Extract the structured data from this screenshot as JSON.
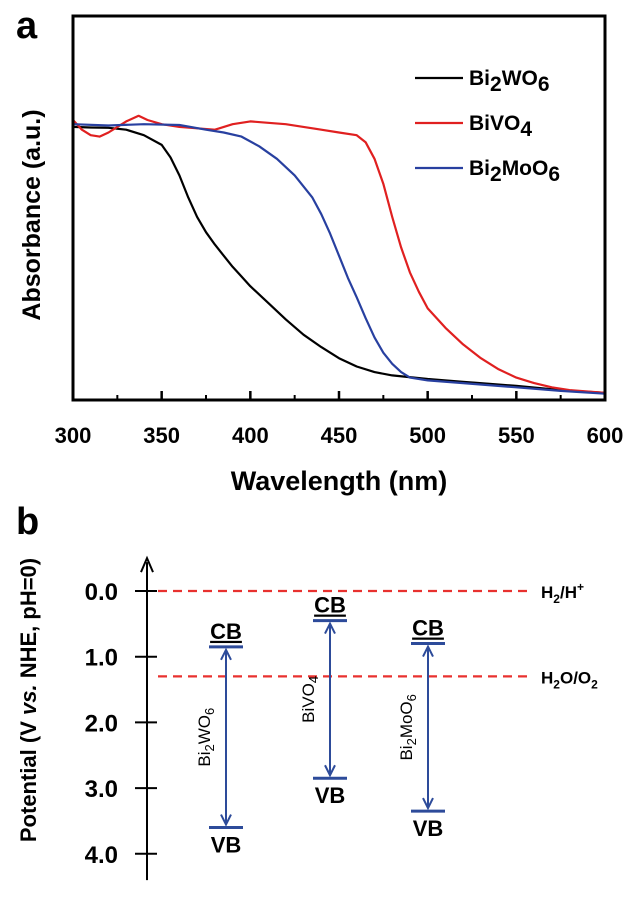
{
  "chart_data": [
    {
      "panel_label": "a",
      "type": "line",
      "xlabel": "Wavelength (nm)",
      "ylabel": "Absorbance (a.u.)",
      "xlim": [
        300,
        600
      ],
      "ylim": [
        0,
        1
      ],
      "x_ticks": [
        "300",
        "350",
        "400",
        "450",
        "500",
        "550",
        "600"
      ],
      "legend_position": "top-right",
      "series": [
        {
          "name": "Bi2WO6",
          "name_parts": {
            "base": "Bi",
            "sub1": "2",
            "mid": "WO",
            "sub2": "6"
          },
          "color": "#000000",
          "points": [
            [
              300,
              0.975
            ],
            [
              310,
              0.973
            ],
            [
              320,
              0.972
            ],
            [
              330,
              0.965
            ],
            [
              340,
              0.945
            ],
            [
              350,
              0.91
            ],
            [
              355,
              0.865
            ],
            [
              360,
              0.8
            ],
            [
              365,
              0.72
            ],
            [
              370,
              0.65
            ],
            [
              375,
              0.595
            ],
            [
              380,
              0.55
            ],
            [
              385,
              0.51
            ],
            [
              390,
              0.47
            ],
            [
              395,
              0.435
            ],
            [
              400,
              0.4
            ],
            [
              410,
              0.34
            ],
            [
              420,
              0.28
            ],
            [
              430,
              0.225
            ],
            [
              440,
              0.18
            ],
            [
              450,
              0.14
            ],
            [
              460,
              0.11
            ],
            [
              470,
              0.09
            ],
            [
              480,
              0.078
            ],
            [
              500,
              0.065
            ],
            [
              520,
              0.055
            ],
            [
              550,
              0.04
            ],
            [
              575,
              0.025
            ],
            [
              600,
              0.015
            ]
          ]
        },
        {
          "name": "BiVO4",
          "name_parts": {
            "base": "BiVO",
            "sub1": "4",
            "mid": "",
            "sub2": ""
          },
          "color": "#e02020",
          "points": [
            [
              300,
              1.0
            ],
            [
              305,
              0.965
            ],
            [
              310,
              0.945
            ],
            [
              315,
              0.94
            ],
            [
              320,
              0.955
            ],
            [
              330,
              0.995
            ],
            [
              337,
              1.015
            ],
            [
              342,
              1.0
            ],
            [
              350,
              0.985
            ],
            [
              360,
              0.975
            ],
            [
              370,
              0.97
            ],
            [
              380,
              0.965
            ],
            [
              390,
              0.985
            ],
            [
              400,
              0.995
            ],
            [
              410,
              0.99
            ],
            [
              420,
              0.985
            ],
            [
              430,
              0.975
            ],
            [
              440,
              0.965
            ],
            [
              450,
              0.955
            ],
            [
              460,
              0.945
            ],
            [
              465,
              0.92
            ],
            [
              470,
              0.86
            ],
            [
              475,
              0.77
            ],
            [
              480,
              0.65
            ],
            [
              485,
              0.54
            ],
            [
              490,
              0.45
            ],
            [
              495,
              0.38
            ],
            [
              500,
              0.32
            ],
            [
              510,
              0.25
            ],
            [
              520,
              0.19
            ],
            [
              530,
              0.14
            ],
            [
              540,
              0.1
            ],
            [
              550,
              0.07
            ],
            [
              560,
              0.05
            ],
            [
              570,
              0.035
            ],
            [
              580,
              0.025
            ],
            [
              590,
              0.02
            ],
            [
              600,
              0.015
            ]
          ]
        },
        {
          "name": "Bi2MoO6",
          "name_parts": {
            "base": "Bi",
            "sub1": "2",
            "mid": "MoO",
            "sub2": "6"
          },
          "color": "#2840a0",
          "points": [
            [
              300,
              0.985
            ],
            [
              320,
              0.98
            ],
            [
              340,
              0.985
            ],
            [
              360,
              0.982
            ],
            [
              375,
              0.965
            ],
            [
              385,
              0.955
            ],
            [
              395,
              0.94
            ],
            [
              405,
              0.905
            ],
            [
              415,
              0.86
            ],
            [
              425,
              0.8
            ],
            [
              435,
              0.72
            ],
            [
              440,
              0.66
            ],
            [
              445,
              0.59
            ],
            [
              450,
              0.51
            ],
            [
              455,
              0.43
            ],
            [
              460,
              0.36
            ],
            [
              465,
              0.285
            ],
            [
              470,
              0.215
            ],
            [
              475,
              0.16
            ],
            [
              480,
              0.12
            ],
            [
              485,
              0.09
            ],
            [
              490,
              0.07
            ],
            [
              500,
              0.06
            ],
            [
              520,
              0.05
            ],
            [
              550,
              0.035
            ],
            [
              575,
              0.022
            ],
            [
              600,
              0.012
            ]
          ]
        }
      ]
    },
    {
      "panel_label": "b",
      "type": "diagram",
      "ylabel_parts": {
        "before": "Potential (V ",
        "italic": "vs.",
        "after": " NHE, pH=0)"
      },
      "ylim": [
        -0.5,
        4.4
      ],
      "y_ticks": [
        {
          "value": 0.0,
          "label": "0.0"
        },
        {
          "value": 1.0,
          "label": "1.0"
        },
        {
          "value": 2.0,
          "label": "2.0"
        },
        {
          "value": 3.0,
          "label": "3.0"
        },
        {
          "value": 4.0,
          "label": "4.0"
        }
      ],
      "reference_lines": [
        {
          "value": 0.0,
          "label": {
            "base": "H",
            "sub": "2",
            "mid": "/H",
            "sup": "+",
            "tail": "",
            "sub2": ""
          }
        },
        {
          "value": 1.3,
          "label": {
            "base": "H",
            "sub": "2",
            "mid": "O/O",
            "sup": "",
            "tail": "",
            "sub2": "2"
          }
        }
      ],
      "materials": [
        {
          "name_parts": {
            "base": "Bi",
            "sub1": "2",
            "mid": "WO",
            "sub2": "6"
          },
          "cb": 0.85,
          "vb": 3.6,
          "cb_label": "CB",
          "vb_label": "VB"
        },
        {
          "name_parts": {
            "base": "BiVO",
            "sub1": "4",
            "mid": "",
            "sub2": ""
          },
          "cb": 0.45,
          "vb": 2.85,
          "cb_label": "CB",
          "vb_label": "VB"
        },
        {
          "name_parts": {
            "base": "Bi",
            "sub1": "2",
            "mid": "MoO",
            "sub2": "6"
          },
          "cb": 0.8,
          "vb": 3.35,
          "cb_label": "CB",
          "vb_label": "VB"
        }
      ],
      "colors": {
        "band": "#2d4b9a",
        "reference": "#e8312f",
        "axis": "#000000"
      }
    }
  ]
}
